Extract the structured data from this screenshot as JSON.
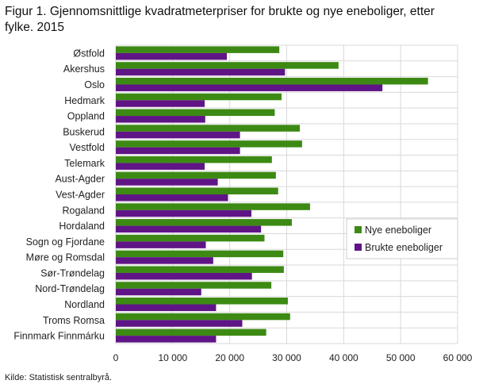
{
  "title": "Figur 1. Gjennomsnittlige kvadratmeterpriser for brukte og nye eneboliger, etter fylke. 2015",
  "source": "Kilde: Statistisk sentralbyrå.",
  "colors": {
    "nye": "#3c8a13",
    "brukte": "#5f1585",
    "grid": "#d9d9d9",
    "legend_border": "#cfcfcf"
  },
  "chart_data": {
    "type": "bar",
    "orientation": "horizontal",
    "categories": [
      "Østfold",
      "Akershus",
      "Oslo",
      "Hedmark",
      "Oppland",
      "Buskerud",
      "Vestfold",
      "Telemark",
      "Aust-Agder",
      "Vest-Agder",
      "Rogaland",
      "Hordaland",
      "Sogn og Fjordane",
      "Møre og Romsdal",
      "Sør-Trøndelag",
      "Nord-Trøndelag",
      "Nordland",
      "Troms Romsa",
      "Finnmark Finnmárku"
    ],
    "series": [
      {
        "name": "Nye eneboliger",
        "color": "#3c8a13",
        "values": [
          28700,
          39100,
          54800,
          29100,
          27900,
          32300,
          32700,
          27400,
          28100,
          28500,
          34100,
          30900,
          26100,
          29400,
          29500,
          27300,
          30200,
          30600,
          26400
        ]
      },
      {
        "name": "Brukte eneboliger",
        "color": "#5f1585",
        "values": [
          19500,
          29700,
          46800,
          15600,
          15700,
          21800,
          21800,
          15600,
          17900,
          19700,
          23800,
          25500,
          15800,
          17100,
          23900,
          15000,
          17600,
          22200,
          17600
        ]
      }
    ],
    "xlim": [
      0,
      60000
    ],
    "xticks": [
      0,
      10000,
      20000,
      30000,
      40000,
      50000,
      60000
    ],
    "xtick_labels": [
      "0",
      "10 000",
      "20 000",
      "30 000",
      "40 000",
      "50 000",
      "60 000"
    ],
    "title": "Figur 1. Gjennomsnittlige kvadratmeterpriser for brukte og nye eneboliger, etter fylke. 2015",
    "xlabel": "",
    "ylabel": "",
    "grid": true,
    "legend_position": "right"
  }
}
